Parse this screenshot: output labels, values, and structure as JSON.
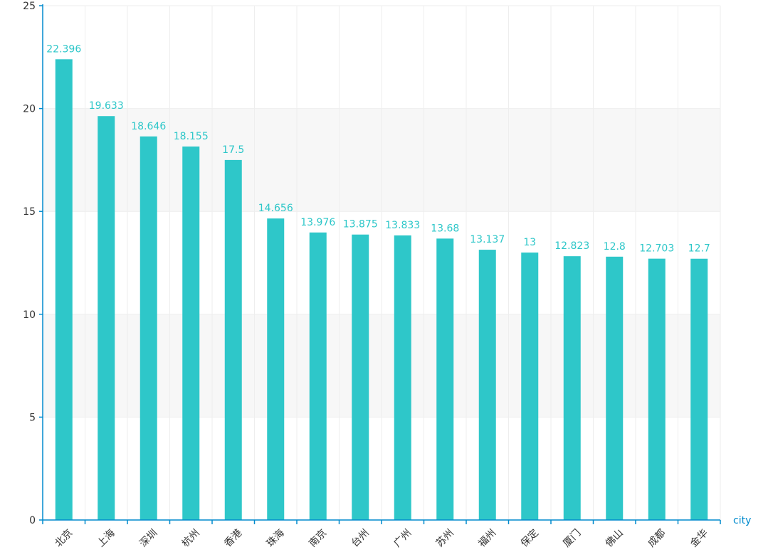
{
  "chart_data": {
    "type": "bar",
    "xlabel": "city",
    "categories": [
      "北京",
      "上海",
      "深圳",
      "杭州",
      "香港",
      "珠海",
      "南京",
      "台州",
      "广州",
      "苏州",
      "福州",
      "保定",
      "厦门",
      "佛山",
      "成都",
      "金华"
    ],
    "value_labels": [
      "22.396",
      "19.633",
      "18.646",
      "18.155",
      "17.5",
      "14.656",
      "13.976",
      "13.875",
      "13.833",
      "13.68",
      "13.137",
      "13",
      "12.823",
      "12.8",
      "12.703",
      "12.7"
    ],
    "values": [
      22.396,
      19.633,
      18.646,
      18.155,
      17.5,
      14.656,
      13.976,
      13.875,
      13.833,
      13.68,
      13.137,
      13,
      12.823,
      12.8,
      12.703,
      12.7
    ],
    "ylim": [
      0,
      25
    ],
    "yticks": [
      "0",
      "5",
      "10",
      "15",
      "20",
      "25"
    ],
    "grid": true,
    "colors": {
      "bar": "#2ec7c9",
      "axis": "#008acd",
      "band": "#f7f7f7",
      "grid": "#eeeeee"
    }
  }
}
